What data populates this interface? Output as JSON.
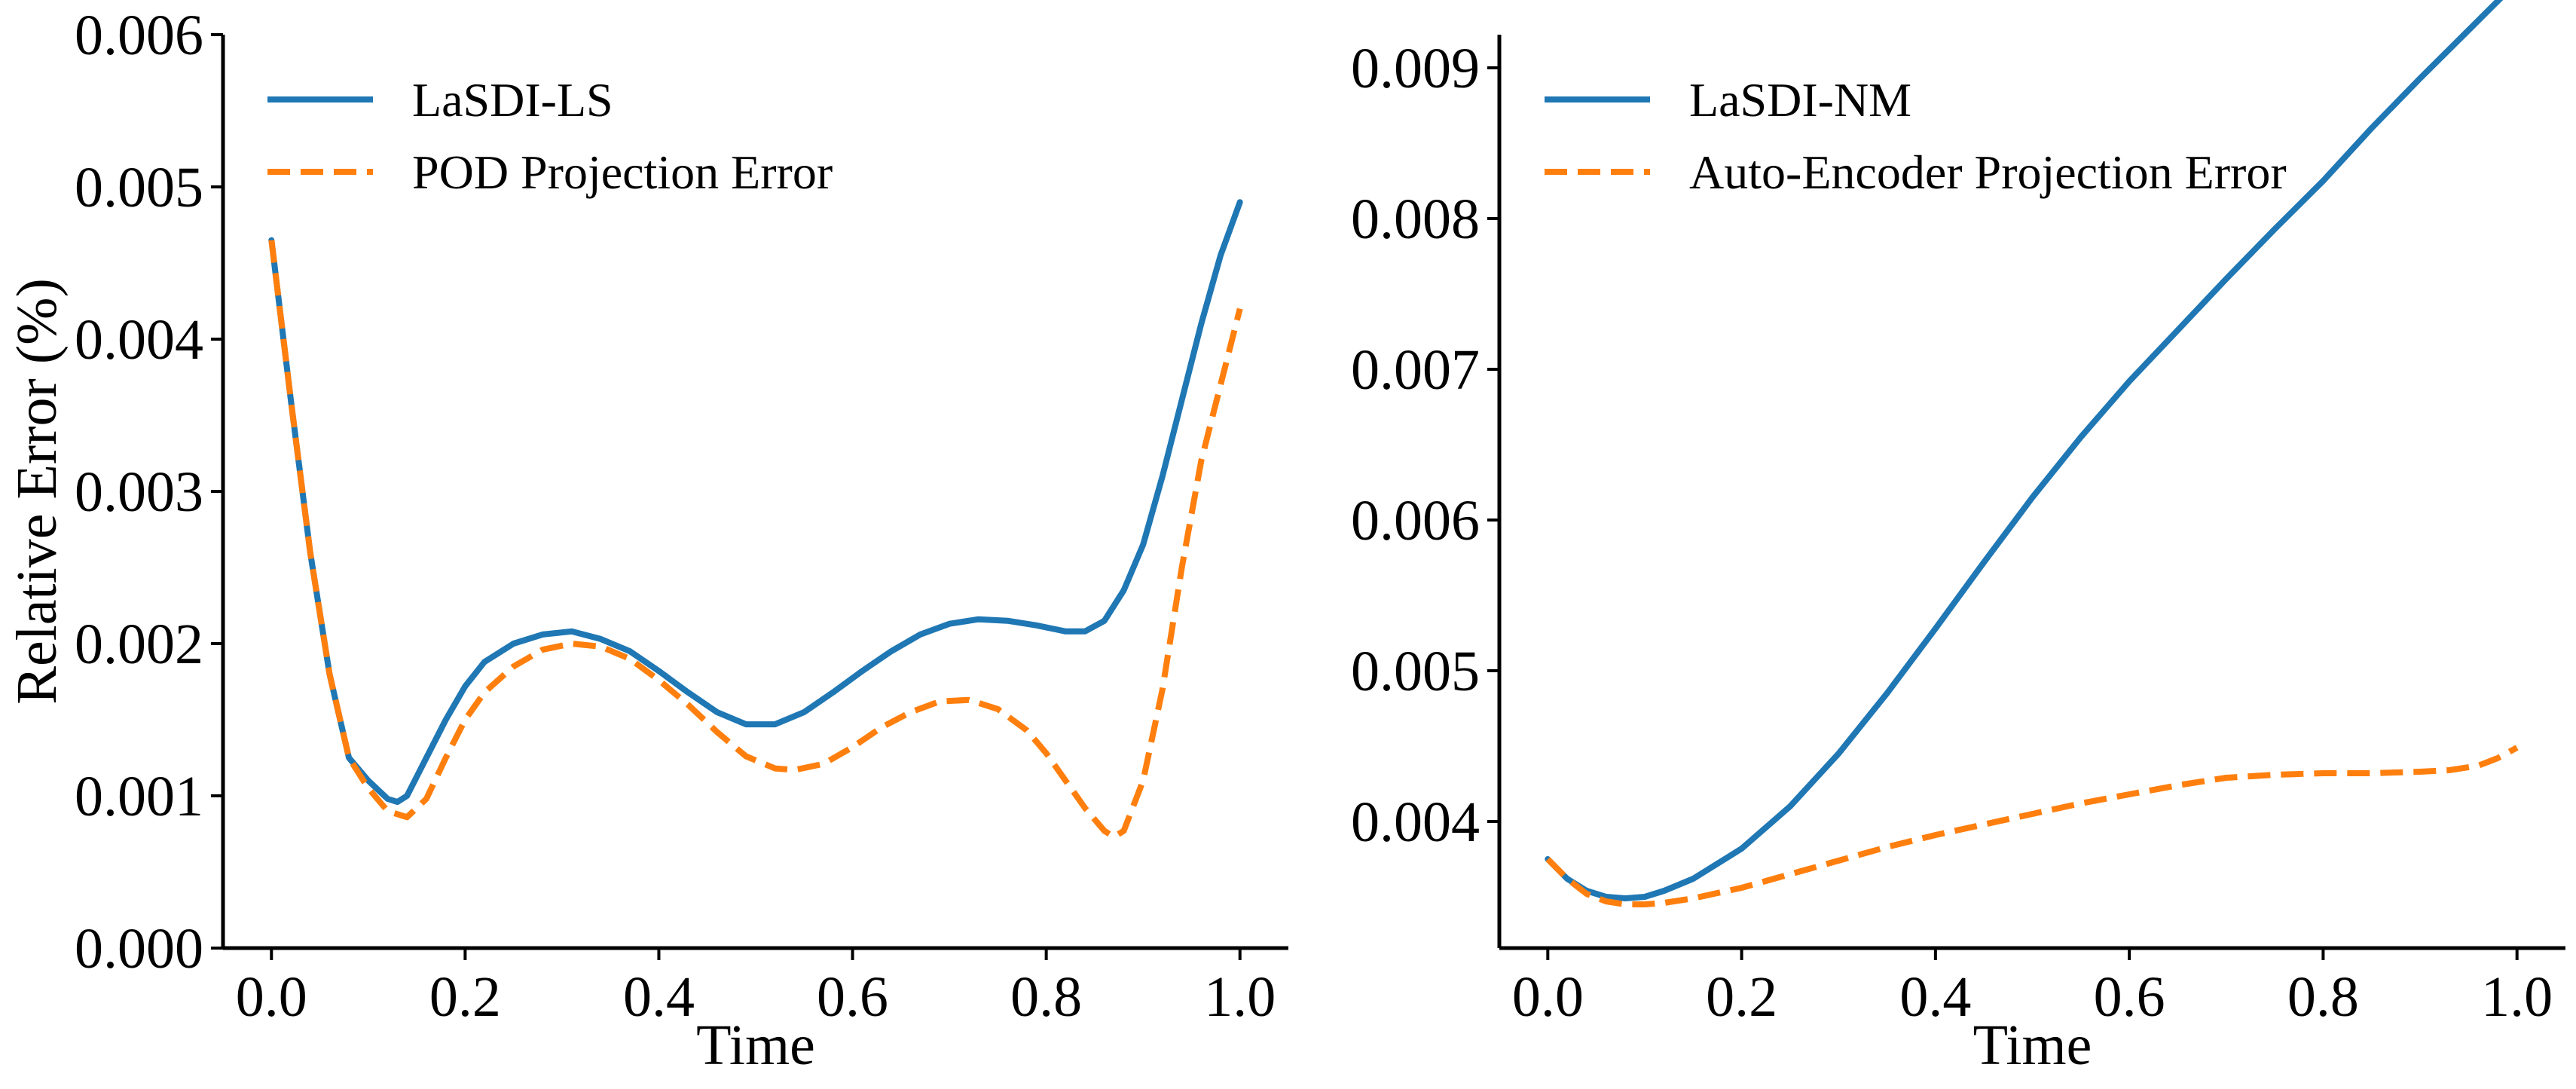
{
  "chart_data": [
    {
      "type": "line",
      "title": "",
      "xlabel": "Time",
      "ylabel": "Relative Error (%)",
      "xlim": [
        -0.05,
        1.05
      ],
      "ylim": [
        0.0,
        0.006
      ],
      "xticks": [
        "0.0",
        "0.2",
        "0.4",
        "0.6",
        "0.8",
        "1.0"
      ],
      "yticks": [
        "0.000",
        "0.001",
        "0.002",
        "0.003",
        "0.004",
        "0.005",
        "0.006"
      ],
      "grid": false,
      "legend_position": "top-left",
      "series": [
        {
          "name": "LaSDI-LS",
          "color": "#1f77b4",
          "style": "solid",
          "x": [
            0.0,
            0.02,
            0.04,
            0.06,
            0.08,
            0.1,
            0.12,
            0.13,
            0.14,
            0.16,
            0.18,
            0.2,
            0.22,
            0.25,
            0.28,
            0.31,
            0.34,
            0.37,
            0.4,
            0.43,
            0.46,
            0.49,
            0.52,
            0.55,
            0.58,
            0.61,
            0.64,
            0.67,
            0.7,
            0.73,
            0.76,
            0.79,
            0.82,
            0.84,
            0.86,
            0.88,
            0.9,
            0.92,
            0.94,
            0.96,
            0.98,
            1.0
          ],
          "y": [
            0.00465,
            0.0036,
            0.0026,
            0.0018,
            0.00125,
            0.0011,
            0.00098,
            0.00096,
            0.001,
            0.00125,
            0.0015,
            0.00172,
            0.00188,
            0.002,
            0.00206,
            0.00208,
            0.00203,
            0.00195,
            0.00182,
            0.00168,
            0.00155,
            0.00147,
            0.00147,
            0.00155,
            0.00168,
            0.00182,
            0.00195,
            0.00206,
            0.00213,
            0.00216,
            0.00215,
            0.00212,
            0.00208,
            0.00208,
            0.00215,
            0.00235,
            0.00265,
            0.0031,
            0.0036,
            0.0041,
            0.00455,
            0.0049
          ]
        },
        {
          "name": "POD Projection Error",
          "color": "#ff7f0e",
          "style": "dashed",
          "x": [
            0.0,
            0.02,
            0.04,
            0.06,
            0.08,
            0.1,
            0.12,
            0.14,
            0.16,
            0.18,
            0.2,
            0.22,
            0.25,
            0.28,
            0.31,
            0.34,
            0.37,
            0.4,
            0.43,
            0.46,
            0.49,
            0.52,
            0.54,
            0.57,
            0.6,
            0.63,
            0.66,
            0.69,
            0.72,
            0.75,
            0.78,
            0.8,
            0.82,
            0.84,
            0.86,
            0.87,
            0.88,
            0.9,
            0.92,
            0.94,
            0.96,
            0.98,
            1.0
          ],
          "y": [
            0.00465,
            0.0036,
            0.0026,
            0.0018,
            0.00125,
            0.00105,
            0.0009,
            0.00086,
            0.00098,
            0.00125,
            0.0015,
            0.00168,
            0.00185,
            0.00196,
            0.002,
            0.00198,
            0.0019,
            0.00176,
            0.0016,
            0.00142,
            0.00126,
            0.00118,
            0.00117,
            0.00121,
            0.00132,
            0.00145,
            0.00155,
            0.00162,
            0.00163,
            0.00157,
            0.00143,
            0.00128,
            0.0011,
            0.00092,
            0.00077,
            0.00073,
            0.00077,
            0.0011,
            0.0017,
            0.0025,
            0.0032,
            0.0037,
            0.0042
          ]
        }
      ]
    },
    {
      "type": "line",
      "title": "",
      "xlabel": "Time",
      "ylabel": "",
      "xlim": [
        -0.05,
        1.05
      ],
      "ylim": [
        0.00316,
        0.00922
      ],
      "xticks": [
        "0.0",
        "0.2",
        "0.4",
        "0.6",
        "0.8",
        "1.0"
      ],
      "yticks": [
        "0.004",
        "0.005",
        "0.006",
        "0.007",
        "0.008",
        "0.009"
      ],
      "grid": false,
      "legend_position": "top-left",
      "series": [
        {
          "name": "LaSDI-NM",
          "color": "#1f77b4",
          "style": "solid",
          "x": [
            0.0,
            0.02,
            0.04,
            0.06,
            0.08,
            0.1,
            0.12,
            0.15,
            0.2,
            0.25,
            0.3,
            0.35,
            0.4,
            0.45,
            0.5,
            0.55,
            0.6,
            0.65,
            0.7,
            0.75,
            0.8,
            0.85,
            0.9,
            0.95,
            1.0
          ],
          "y": [
            0.00375,
            0.00362,
            0.00354,
            0.0035,
            0.00349,
            0.0035,
            0.00354,
            0.00362,
            0.00382,
            0.0041,
            0.00445,
            0.00485,
            0.00528,
            0.00572,
            0.00615,
            0.00655,
            0.00692,
            0.00726,
            0.0076,
            0.00793,
            0.00825,
            0.0086,
            0.00893,
            0.00925,
            0.00957
          ]
        },
        {
          "name": "Auto-Encoder Projection Error",
          "color": "#ff7f0e",
          "style": "dashed",
          "x": [
            0.0,
            0.02,
            0.04,
            0.06,
            0.08,
            0.1,
            0.12,
            0.15,
            0.2,
            0.25,
            0.3,
            0.35,
            0.4,
            0.45,
            0.5,
            0.55,
            0.6,
            0.65,
            0.7,
            0.75,
            0.8,
            0.85,
            0.9,
            0.93,
            0.96,
            0.98,
            1.0
          ],
          "y": [
            0.00375,
            0.00362,
            0.00352,
            0.00347,
            0.00345,
            0.00345,
            0.00346,
            0.00349,
            0.00356,
            0.00365,
            0.00374,
            0.00383,
            0.00391,
            0.00398,
            0.00405,
            0.00412,
            0.00418,
            0.00424,
            0.00429,
            0.00431,
            0.00432,
            0.00432,
            0.00433,
            0.00434,
            0.00437,
            0.00442,
            0.00449
          ]
        }
      ]
    }
  ]
}
